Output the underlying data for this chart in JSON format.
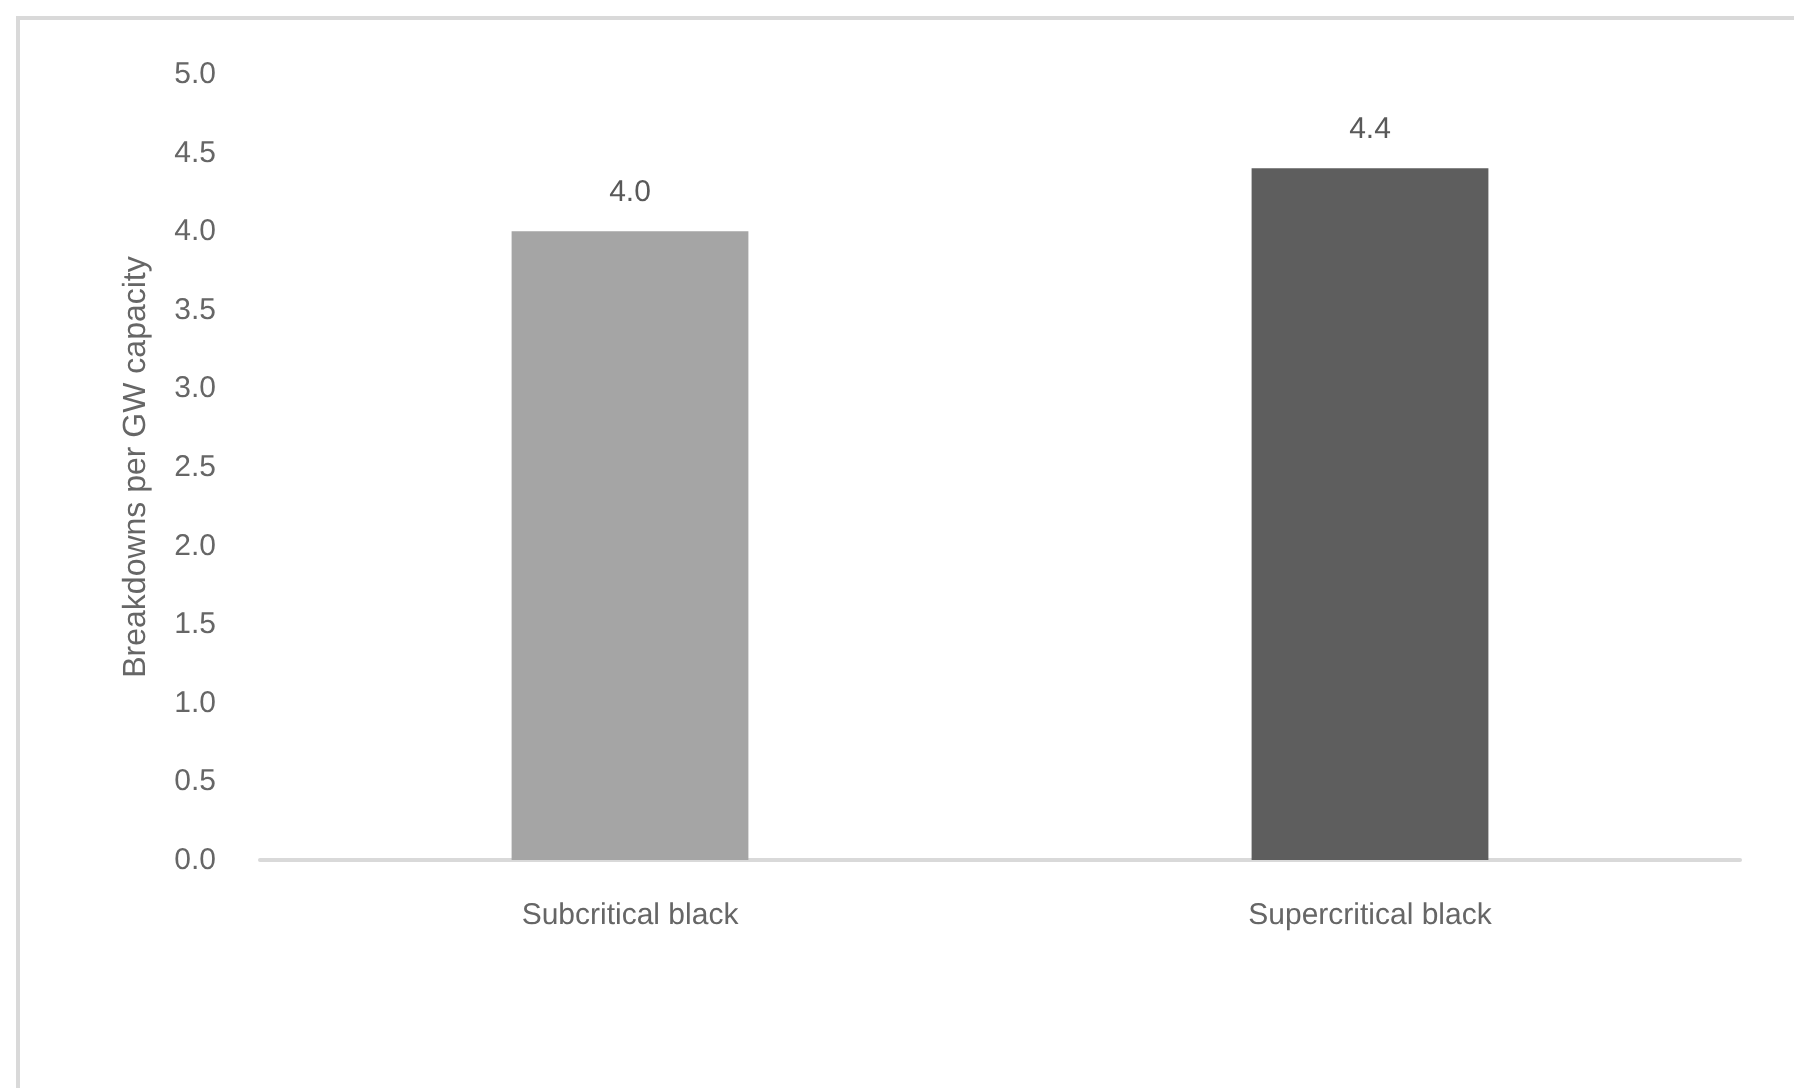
{
  "chart_data": {
    "type": "bar",
    "ylabel": "Breakdowns per GW capacity",
    "categories": [
      "Subcritical black",
      "Supercritical black"
    ],
    "values": [
      4.0,
      4.4
    ],
    "colors": [
      "#a5a5a5",
      "#5e5e5e"
    ],
    "value_labels": [
      "4.0",
      "4.4"
    ],
    "ylim": [
      0,
      5
    ],
    "yticks": [
      {
        "value": 0,
        "label": "0.0"
      },
      {
        "value": 0.5,
        "label": "0.5"
      },
      {
        "value": 1,
        "label": "1.0"
      },
      {
        "value": 1.5,
        "label": "1.5"
      },
      {
        "value": 2,
        "label": "2.0"
      },
      {
        "value": 2.5,
        "label": "2.5"
      },
      {
        "value": 3,
        "label": "3.0"
      },
      {
        "value": 3.5,
        "label": "3.5"
      },
      {
        "value": 4,
        "label": "4.0"
      },
      {
        "value": 4.5,
        "label": "4.5"
      },
      {
        "value": 5,
        "label": "5.0"
      }
    ],
    "grid": false
  }
}
